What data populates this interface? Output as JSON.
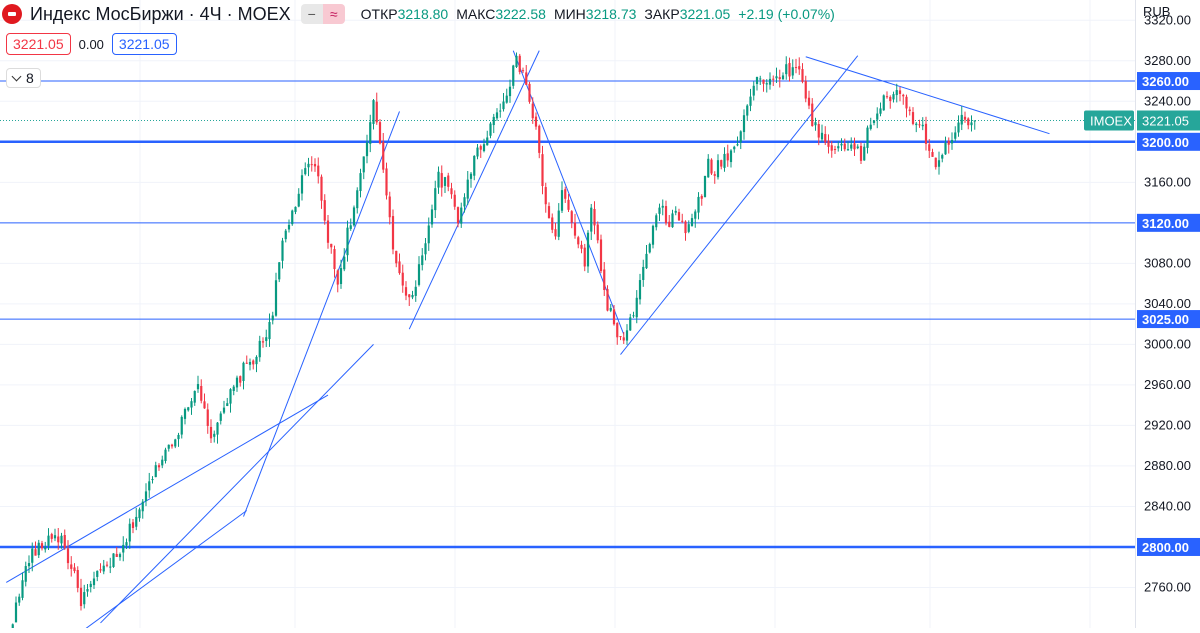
{
  "header": {
    "title": "Индекс МосБиржи · 4Ч · MOEX",
    "ohlc": [
      {
        "label": "ОТКР",
        "value": "3218.80"
      },
      {
        "label": "МАКС",
        "value": "3222.58"
      },
      {
        "label": "МИН",
        "value": "3218.73"
      },
      {
        "label": "ЗАКР",
        "value": "3221.05"
      }
    ],
    "change": "+2.19 (+0.07%)",
    "sell_price": "3221.05",
    "spread": "0.00",
    "buy_price": "3221.05",
    "indicators_count": "8",
    "currency": "RUB"
  },
  "colors": {
    "up": "#089981",
    "down": "#f23645",
    "line": "#2962ff",
    "grid": "#f0f3fa",
    "brand": "#e0191f",
    "symbol_tag": "#26a69a"
  },
  "chart_data": {
    "type": "candlestick",
    "symbol": "IMOEX",
    "last_price": 3221.05,
    "last_label": "3221.05",
    "y_ticks": [
      "3320.00",
      "3280.00",
      "3240.00",
      "3160.00",
      "3080.00",
      "3040.00",
      "3000.00",
      "2960.00",
      "2920.00",
      "2880.00",
      "2840.00",
      "2760.00"
    ],
    "ylim": [
      2720,
      3340
    ],
    "levels": [
      {
        "value": 3260,
        "label": "3260.00",
        "thick": false
      },
      {
        "value": 3200,
        "label": "3200.00",
        "thick": true
      },
      {
        "value": 3120,
        "label": "3120.00",
        "thick": false
      },
      {
        "value": 3025,
        "label": "3025.00",
        "thick": false
      },
      {
        "value": 2800,
        "label": "2800.00",
        "thick": true
      }
    ],
    "bars": 300,
    "anchors": [
      [
        0,
        2700
      ],
      [
        4,
        2740
      ],
      [
        8,
        2790
      ],
      [
        12,
        2800
      ],
      [
        15,
        2812
      ],
      [
        18,
        2808
      ],
      [
        21,
        2780
      ],
      [
        24,
        2748
      ],
      [
        27,
        2760
      ],
      [
        30,
        2775
      ],
      [
        33,
        2785
      ],
      [
        36,
        2790
      ],
      [
        40,
        2825
      ],
      [
        44,
        2852
      ],
      [
        48,
        2885
      ],
      [
        52,
        2905
      ],
      [
        56,
        2930
      ],
      [
        58,
        2950
      ],
      [
        60,
        2960
      ],
      [
        62,
        2940
      ],
      [
        64,
        2910
      ],
      [
        66,
        2918
      ],
      [
        70,
        2950
      ],
      [
        74,
        2975
      ],
      [
        78,
        2990
      ],
      [
        81,
        3010
      ],
      [
        83,
        3035
      ],
      [
        86,
        3100
      ],
      [
        90,
        3140
      ],
      [
        93,
        3170
      ],
      [
        96,
        3180
      ],
      [
        98,
        3140
      ],
      [
        101,
        3090
      ],
      [
        103,
        3060
      ],
      [
        106,
        3110
      ],
      [
        109,
        3150
      ],
      [
        111,
        3180
      ],
      [
        114,
        3235
      ],
      [
        116,
        3200
      ],
      [
        118,
        3150
      ],
      [
        120,
        3100
      ],
      [
        123,
        3055
      ],
      [
        125,
        3040
      ],
      [
        128,
        3075
      ],
      [
        131,
        3120
      ],
      [
        134,
        3165
      ],
      [
        137,
        3155
      ],
      [
        140,
        3120
      ],
      [
        143,
        3165
      ],
      [
        146,
        3190
      ],
      [
        149,
        3210
      ],
      [
        153,
        3235
      ],
      [
        156,
        3260
      ],
      [
        158,
        3278
      ],
      [
        160,
        3270
      ],
      [
        162,
        3240
      ],
      [
        164,
        3210
      ],
      [
        166,
        3160
      ],
      [
        168,
        3120
      ],
      [
        170,
        3110
      ],
      [
        172,
        3150
      ],
      [
        175,
        3120
      ],
      [
        177,
        3100
      ],
      [
        179,
        3075
      ],
      [
        181,
        3140
      ],
      [
        183,
        3100
      ],
      [
        185,
        3050
      ],
      [
        187,
        3030
      ],
      [
        189,
        3010
      ],
      [
        191,
        3000
      ],
      [
        193,
        3020
      ],
      [
        196,
        3060
      ],
      [
        199,
        3100
      ],
      [
        202,
        3135
      ],
      [
        205,
        3120
      ],
      [
        207,
        3130
      ],
      [
        210,
        3110
      ],
      [
        213,
        3135
      ],
      [
        215,
        3145
      ],
      [
        217,
        3178
      ],
      [
        219,
        3170
      ],
      [
        222,
        3185
      ],
      [
        225,
        3192
      ],
      [
        227,
        3215
      ],
      [
        229,
        3240
      ],
      [
        232,
        3265
      ],
      [
        235,
        3255
      ],
      [
        238,
        3265
      ],
      [
        241,
        3272
      ],
      [
        244,
        3270
      ],
      [
        246,
        3265
      ],
      [
        248,
        3230
      ],
      [
        250,
        3215
      ],
      [
        253,
        3200
      ],
      [
        255,
        3190
      ],
      [
        258,
        3200
      ],
      [
        261,
        3195
      ],
      [
        264,
        3185
      ],
      [
        266,
        3210
      ],
      [
        268,
        3225
      ],
      [
        271,
        3240
      ],
      [
        274,
        3248
      ],
      [
        277,
        3240
      ],
      [
        279,
        3228
      ],
      [
        281,
        3220
      ],
      [
        283,
        3210
      ],
      [
        285,
        3195
      ],
      [
        287,
        3175
      ],
      [
        289,
        3185
      ],
      [
        291,
        3200
      ],
      [
        293,
        3215
      ],
      [
        295,
        3228
      ],
      [
        297,
        3220
      ],
      [
        299,
        3221.05
      ]
    ],
    "trendlines": [
      [
        [
          1,
          2765
        ],
        [
          100,
          2950
        ]
      ],
      [
        [
          30,
          2725
        ],
        [
          114,
          3000
        ]
      ],
      [
        [
          74,
          2830
        ],
        [
          122,
          3230
        ]
      ],
      [
        [
          125,
          3015
        ],
        [
          165,
          3290
        ]
      ],
      [
        [
          157,
          3290
        ],
        [
          191,
          3010
        ]
      ],
      [
        [
          190,
          2990
        ],
        [
          263,
          3285
        ]
      ],
      [
        [
          247,
          3284
        ],
        [
          322,
          3208
        ]
      ],
      [
        [
          24,
          2716
        ],
        [
          75,
          2836
        ]
      ]
    ]
  }
}
